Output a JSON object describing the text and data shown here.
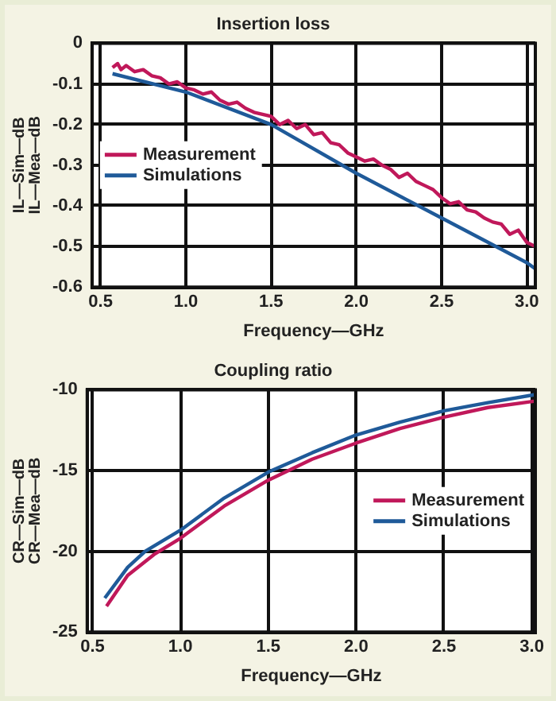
{
  "chart_data": [
    {
      "type": "line",
      "title": "Insertion loss",
      "xlabel": "Frequency—GHz",
      "ylabel": "IL—Sim—dB\nIL—Mea—dB",
      "xlim": [
        0.45,
        3.05
      ],
      "xticks": [
        {
          "value": 0.5,
          "label": "0.5"
        },
        {
          "value": 1,
          "label": "1.0"
        },
        {
          "value": 1.5,
          "label": "1.5"
        },
        {
          "value": 2,
          "label": "2.0"
        },
        {
          "value": 2.5,
          "label": "2.5"
        },
        {
          "value": 3,
          "label": "3.0"
        }
      ],
      "ylim": [
        -0.6,
        0
      ],
      "yticks": [
        0,
        -0.1,
        -0.2,
        -0.3,
        -0.4,
        -0.5,
        -0.6
      ],
      "grid": true,
      "legend": "center left",
      "marker": "none",
      "line_style": "solid",
      "series": [
        {
          "name": "Measurement",
          "color": "#c0185a",
          "x": [
            0.57,
            0.6,
            0.62,
            0.65,
            0.7,
            0.75,
            0.8,
            0.85,
            0.9,
            0.95,
            1.0,
            1.05,
            1.1,
            1.15,
            1.2,
            1.25,
            1.3,
            1.35,
            1.4,
            1.45,
            1.5,
            1.55,
            1.6,
            1.65,
            1.7,
            1.75,
            1.8,
            1.85,
            1.9,
            1.95,
            2.0,
            2.05,
            2.1,
            2.15,
            2.2,
            2.25,
            2.3,
            2.35,
            2.4,
            2.45,
            2.5,
            2.55,
            2.6,
            2.65,
            2.7,
            2.75,
            2.8,
            2.85,
            2.9,
            2.95,
            3.0,
            3.05
          ],
          "values": [
            -0.06,
            -0.05,
            -0.065,
            -0.055,
            -0.07,
            -0.065,
            -0.08,
            -0.085,
            -0.1,
            -0.095,
            -0.11,
            -0.115,
            -0.125,
            -0.12,
            -0.14,
            -0.15,
            -0.145,
            -0.16,
            -0.17,
            -0.175,
            -0.18,
            -0.2,
            -0.19,
            -0.21,
            -0.2,
            -0.225,
            -0.22,
            -0.245,
            -0.25,
            -0.27,
            -0.28,
            -0.29,
            -0.285,
            -0.3,
            -0.31,
            -0.33,
            -0.32,
            -0.34,
            -0.35,
            -0.36,
            -0.38,
            -0.395,
            -0.39,
            -0.41,
            -0.415,
            -0.43,
            -0.44,
            -0.445,
            -0.47,
            -0.46,
            -0.49,
            -0.5
          ]
        },
        {
          "name": "Simulations",
          "color": "#1f5a99",
          "x": [
            0.57,
            1.0,
            1.5,
            2.0,
            2.5,
            3.0,
            3.05
          ],
          "values": [
            -0.075,
            -0.12,
            -0.2,
            -0.32,
            -0.43,
            -0.54,
            -0.555
          ]
        }
      ]
    },
    {
      "type": "line",
      "title": "Coupling ratio",
      "xlabel": "Frequency—GHz",
      "ylabel": "CR—Sim—dB\nCR—Mea—dB",
      "xlim": [
        0.47,
        3.02
      ],
      "xticks": [
        {
          "value": 0.5,
          "label": "0.5"
        },
        {
          "value": 1,
          "label": "1.0"
        },
        {
          "value": 1.5,
          "label": "1.5"
        },
        {
          "value": 2,
          "label": "2.0"
        },
        {
          "value": 2.5,
          "label": "2.5"
        },
        {
          "value": 3,
          "label": "3.0"
        }
      ],
      "ylim": [
        -25,
        -10
      ],
      "yticks": [
        -10,
        -15,
        -20,
        -25
      ],
      "grid": true,
      "legend": "center right",
      "marker": "none",
      "line_style": "solid",
      "series": [
        {
          "name": "Measurement",
          "color": "#c0185a",
          "x": [
            0.58,
            0.7,
            0.85,
            1.0,
            1.25,
            1.5,
            1.75,
            2.0,
            2.25,
            2.5,
            2.75,
            3.02
          ],
          "values": [
            -23.4,
            -21.5,
            -20.2,
            -19.2,
            -17.2,
            -15.6,
            -14.3,
            -13.3,
            -12.4,
            -11.7,
            -11.1,
            -10.7
          ]
        },
        {
          "name": "Simulations",
          "color": "#1f5a99",
          "x": [
            0.57,
            0.7,
            0.8,
            1.0,
            1.25,
            1.5,
            1.75,
            2.0,
            2.25,
            2.5,
            2.75,
            3.02
          ],
          "values": [
            -22.9,
            -21.0,
            -20.0,
            -18.7,
            -16.7,
            -15.1,
            -13.9,
            -12.8,
            -12.0,
            -11.3,
            -10.8,
            -10.3
          ]
        }
      ]
    }
  ]
}
